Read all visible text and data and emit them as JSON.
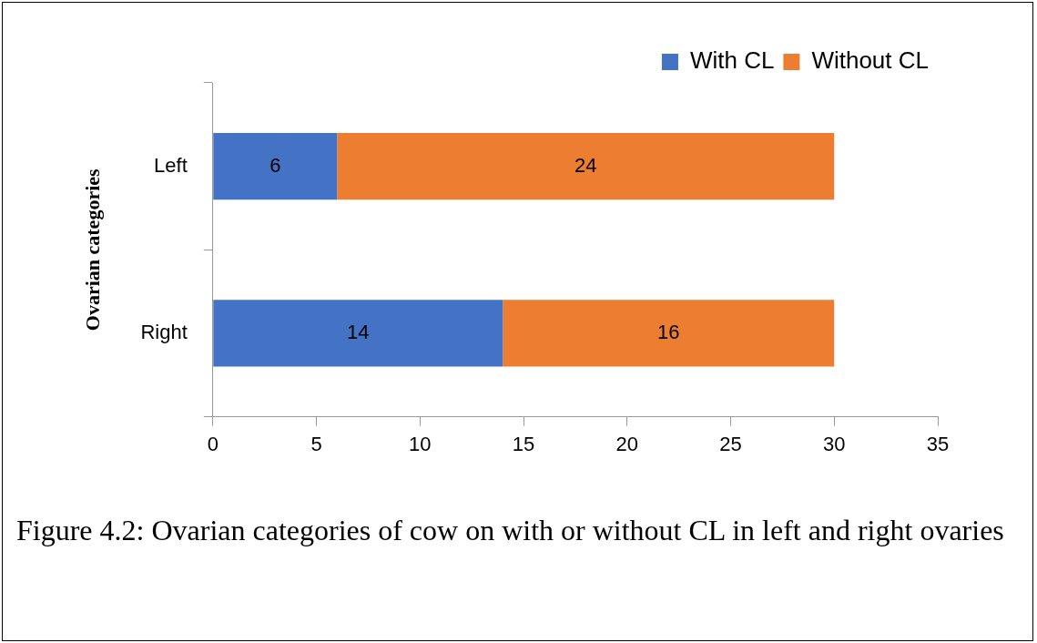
{
  "chart_data": {
    "type": "bar",
    "orientation": "horizontal",
    "stacked": true,
    "categories": [
      "Left",
      "Right"
    ],
    "series": [
      {
        "name": "With CL",
        "color": "#4472c4",
        "values": [
          6,
          14
        ]
      },
      {
        "name": "Without CL",
        "color": "#ed7d31",
        "values": [
          24,
          16
        ]
      }
    ],
    "xlim": [
      0,
      35
    ],
    "xticks": [
      0,
      5,
      10,
      15,
      20,
      25,
      30,
      35
    ],
    "ylabel": "Ovarian categories",
    "legend": "top right",
    "data_labels": true,
    "annotations": [
      "Figure 4.2: Ovarian categories of cow on with or without CL in left and right ovaries"
    ]
  }
}
